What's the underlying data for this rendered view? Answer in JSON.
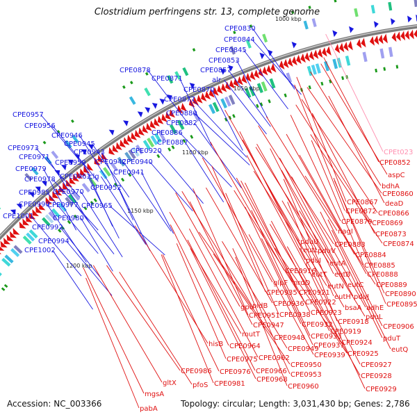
{
  "title": "Clostridium perfringens str. 13, complete genome",
  "footer": {
    "accession": "Accession: NC_003366",
    "summary": "Topology: circular; Length: 3,031,430 bp; Genes: 2,786"
  },
  "colors": {
    "plus_strand": "#1818e0",
    "minus_strand": "#e01010",
    "backbone": "#7a7a7a",
    "special_label": "#ff90b0"
  },
  "kbp_marks": [
    "1050 kbp",
    "1100 kbp",
    "1150 kbp",
    "1200 kbp"
  ],
  "top_partial_mark": "1000 kbp",
  "labels_plus": [
    "CPE0830",
    "CPE0844",
    "CPE0845",
    "CPE0853",
    "CPE0857",
    "alr",
    "CPE0878",
    "CPE0871",
    "CPE0870",
    "CPE0877",
    "CPE0880",
    "CPE0882",
    "CPE0886",
    "CPE0887",
    "CPE0920",
    "CPE0957",
    "CPE0956",
    "CPE0946",
    "CPE0945",
    "CPE0943",
    "CPE0942",
    "CPE0940",
    "CPE0941",
    "CPE0973",
    "CPE0971",
    "CPE0959",
    "CPE0963",
    "clg",
    "CPE0979",
    "CPE0978",
    "CPE0952",
    "CPE0985",
    "CPE0970",
    "CPE0990",
    "CPE0977",
    "CPE0965",
    "CPE1001",
    "CPE0980",
    "CPE0992",
    "CPE0994",
    "CPE1002"
  ],
  "labels_minus": [
    "CPEt023",
    "CPE0852",
    "aspC",
    "bdhA",
    "CPE0860",
    "CPE0867",
    "deaD",
    "CPE0872",
    "CPE0866",
    "CPE0879",
    "CPE0869",
    "nagI",
    "CPE0873",
    "CPE0883",
    "CPE0874",
    "pduU",
    "eutL",
    "pduV",
    "CPE0884",
    "pduI",
    "eutA",
    "CPE0885",
    "CPE0916",
    "eutT",
    "eutB",
    "CPE0888",
    "glpF",
    "nrdD",
    "CPE0921",
    "eutN",
    "eutC",
    "CPE0889",
    "CPE0935",
    "eutH",
    "pduJ",
    "CPE0890",
    "pldB",
    "CPE0936",
    "CPE0922",
    "CPE0895",
    "gpo",
    "CPE0923",
    "bsaA",
    "adhE",
    "CPE0951",
    "CPE0938",
    "CPE0918",
    "pduL",
    "CPE0947",
    "CPE0932",
    "CPE0906",
    "mutT",
    "CPE0948",
    "CPE0919",
    "pduT",
    "CPE0964",
    "CPE0933",
    "CPE0924",
    "hisB",
    "CPE0949",
    "CPE0937",
    "CPE0925",
    "eutQ",
    "CPE0962",
    "CPE0939",
    "CPE0975",
    "CPE0950",
    "CPE0927",
    "CPE0986",
    "CPE0976",
    "CPE0966",
    "CPE0953",
    "CPE0928",
    "gltX",
    "CPE0968",
    "CPE0981",
    "pfoS",
    "CPE0960",
    "CPE0929",
    "mgsA",
    "pabA"
  ]
}
